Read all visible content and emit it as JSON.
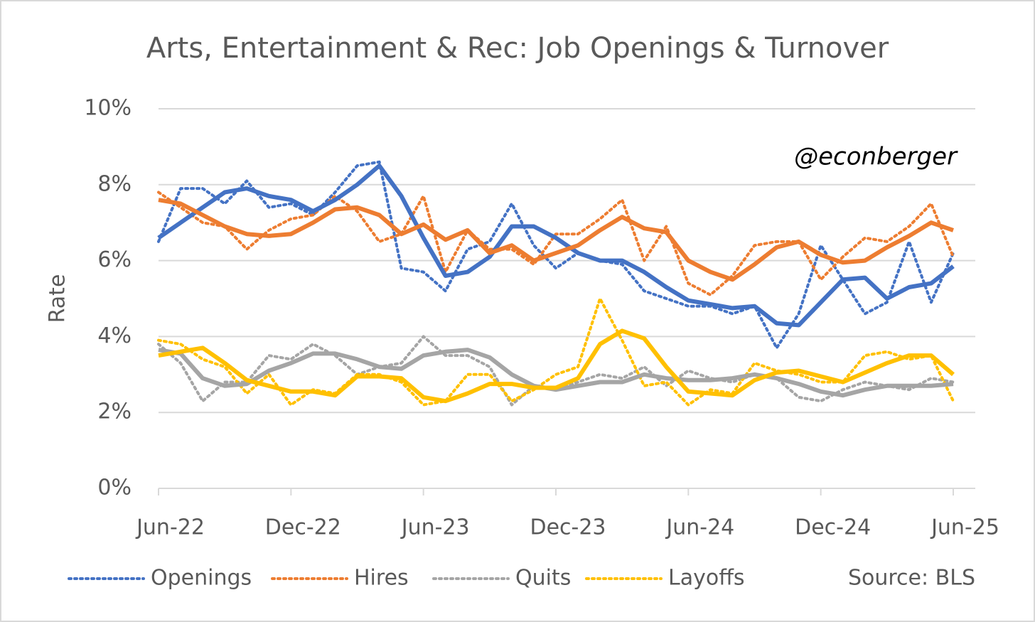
{
  "chart_data": {
    "type": "line",
    "title": "Arts, Entertainment & Rec: Job Openings & Turnover",
    "y_label": "Rate",
    "annotations": [
      "@econberger",
      "Source: BLS"
    ],
    "categories": [
      "Jun-22",
      null,
      null,
      null,
      null,
      null,
      "Dec-22",
      null,
      null,
      null,
      null,
      null,
      "Jun-23",
      null,
      null,
      null,
      null,
      null,
      "Dec-23",
      null,
      null,
      null,
      null,
      null,
      "Jun-24",
      null,
      null,
      null,
      null,
      null,
      "Dec-24",
      null,
      null,
      null,
      null,
      null,
      "Jun-25"
    ],
    "ylim": [
      0,
      10
    ],
    "yticks": [
      {
        "value": 0,
        "label": "0%"
      },
      {
        "value": 2,
        "label": "2%"
      },
      {
        "value": 4,
        "label": "4%"
      },
      {
        "value": 6,
        "label": "6%"
      },
      {
        "value": 8,
        "label": "8%"
      },
      {
        "value": 10,
        "label": "10%"
      }
    ],
    "grid": true,
    "legend": "bottom",
    "line_style": "dotted",
    "trend_style": "solid",
    "series": [
      {
        "name": "Openings",
        "color": "#4472c4",
        "values": [
          6.5,
          7.9,
          7.9,
          7.5,
          8.1,
          7.4,
          7.5,
          7.2,
          7.8,
          8.5,
          8.6,
          5.8,
          5.7,
          5.2,
          6.3,
          6.5,
          7.5,
          6.4,
          5.8,
          6.2,
          6.0,
          5.9,
          5.2,
          5.0,
          4.8,
          4.8,
          4.6,
          4.8,
          3.7,
          4.6,
          6.4,
          5.5,
          4.6,
          4.9,
          6.5,
          4.9,
          6.2
        ],
        "trend_values": [
          6.6,
          7.0,
          7.4,
          7.8,
          7.9,
          7.7,
          7.6,
          7.3,
          7.6,
          8.0,
          8.5,
          7.7,
          6.6,
          5.6,
          5.7,
          6.1,
          6.9,
          6.9,
          6.6,
          6.2,
          6.0,
          6.0,
          5.7,
          5.3,
          4.95,
          4.85,
          4.75,
          4.8,
          4.35,
          4.3,
          4.9,
          5.5,
          5.55,
          5.0,
          5.3,
          5.4,
          5.85
        ]
      },
      {
        "name": "Hires",
        "color": "#ed7d31",
        "values": [
          7.8,
          7.4,
          7.0,
          6.9,
          6.3,
          6.8,
          7.1,
          7.2,
          7.7,
          7.3,
          6.5,
          6.7,
          7.7,
          5.7,
          6.8,
          6.3,
          6.3,
          5.9,
          6.7,
          6.7,
          7.1,
          7.6,
          6.0,
          6.9,
          5.4,
          5.1,
          5.6,
          6.4,
          6.5,
          6.5,
          5.5,
          6.1,
          6.6,
          6.5,
          6.9,
          7.5,
          6.1
        ],
        "trend_values": [
          7.6,
          7.5,
          7.2,
          6.9,
          6.7,
          6.65,
          6.7,
          7.0,
          7.35,
          7.4,
          7.2,
          6.7,
          6.95,
          6.55,
          6.8,
          6.2,
          6.4,
          6.0,
          6.2,
          6.4,
          6.8,
          7.15,
          6.85,
          6.75,
          6.0,
          5.7,
          5.5,
          5.9,
          6.35,
          6.5,
          6.15,
          5.95,
          6.0,
          6.35,
          6.65,
          7.0,
          6.8
        ]
      },
      {
        "name": "Quits",
        "color": "#a5a5a5",
        "values": [
          3.8,
          3.3,
          2.3,
          2.8,
          2.8,
          3.5,
          3.4,
          3.8,
          3.5,
          3.0,
          3.2,
          3.3,
          4.0,
          3.5,
          3.5,
          3.2,
          2.2,
          2.7,
          2.6,
          2.8,
          3.0,
          2.9,
          3.2,
          2.7,
          3.1,
          2.9,
          2.8,
          3.0,
          2.9,
          2.4,
          2.3,
          2.6,
          2.8,
          2.7,
          2.6,
          2.9,
          2.8
        ],
        "trend_values": [
          3.65,
          3.55,
          2.9,
          2.7,
          2.75,
          3.1,
          3.3,
          3.55,
          3.55,
          3.4,
          3.2,
          3.15,
          3.5,
          3.6,
          3.65,
          3.45,
          3.0,
          2.7,
          2.6,
          2.7,
          2.8,
          2.8,
          3.0,
          2.9,
          2.85,
          2.85,
          2.9,
          3.0,
          2.9,
          2.75,
          2.55,
          2.45,
          2.6,
          2.7,
          2.7,
          2.7,
          2.75
        ]
      },
      {
        "name": "Layoffs",
        "color": "#ffc000",
        "values": [
          3.9,
          3.8,
          3.4,
          3.2,
          2.5,
          3.0,
          2.2,
          2.6,
          2.5,
          3.0,
          3.0,
          2.8,
          2.2,
          2.3,
          3.0,
          3.0,
          2.3,
          2.6,
          3.0,
          3.2,
          5.0,
          3.9,
          2.7,
          2.8,
          2.2,
          2.6,
          2.5,
          3.3,
          3.1,
          3.0,
          2.8,
          2.8,
          3.5,
          3.6,
          3.4,
          3.5,
          2.3
        ],
        "trend_values": [
          3.5,
          3.6,
          3.7,
          3.3,
          2.85,
          2.7,
          2.55,
          2.55,
          2.45,
          2.95,
          2.95,
          2.9,
          2.4,
          2.3,
          2.5,
          2.75,
          2.75,
          2.65,
          2.65,
          2.9,
          3.8,
          4.15,
          3.95,
          3.2,
          2.55,
          2.5,
          2.45,
          2.85,
          3.05,
          3.1,
          2.95,
          2.8,
          3.05,
          3.3,
          3.5,
          3.5,
          3.0
        ]
      }
    ]
  }
}
